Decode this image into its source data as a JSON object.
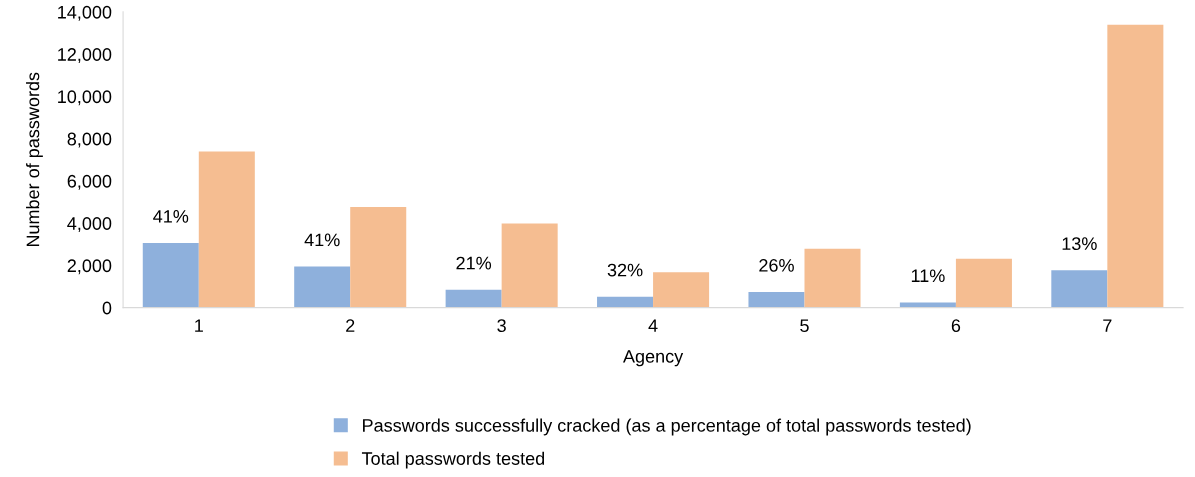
{
  "chart_data": {
    "type": "bar",
    "xlabel": "Agency",
    "ylabel": "Number of passwords",
    "categories": [
      "1",
      "2",
      "3",
      "4",
      "5",
      "6",
      "7"
    ],
    "series": [
      {
        "name": "Passwords successfully cracked (as a percentage of total passwords tested)",
        "color": "#8eb0dc",
        "values": [
          3060,
          1950,
          850,
          520,
          740,
          250,
          1770
        ]
      },
      {
        "name": "Total passwords tested",
        "color": "#f5bd91",
        "values": [
          7390,
          4770,
          3980,
          1680,
          2790,
          2310,
          13390
        ]
      }
    ],
    "ylim": [
      0,
      14000
    ],
    "yticks": [
      {
        "value": 0,
        "label": "0"
      },
      {
        "value": 2000,
        "label": "2,000"
      },
      {
        "value": 4000,
        "label": "4,000"
      },
      {
        "value": 6000,
        "label": "6,000"
      },
      {
        "value": 8000,
        "label": "8,000"
      },
      {
        "value": 10000,
        "label": "10,000"
      },
      {
        "value": 12000,
        "label": "12,000"
      },
      {
        "value": 14000,
        "label": "14,000"
      }
    ],
    "annotations": [
      {
        "text": "41%",
        "x": "1",
        "y": 3060
      },
      {
        "text": "41%",
        "x": "2",
        "y": 1950
      },
      {
        "text": "21%",
        "x": "3",
        "y": 850
      },
      {
        "text": "32%",
        "x": "4",
        "y": 520
      },
      {
        "text": "26%",
        "x": "5",
        "y": 740
      },
      {
        "text": "11%",
        "x": "6",
        "y": 250
      },
      {
        "text": "13%",
        "x": "7",
        "y": 1770
      }
    ],
    "grid": false,
    "legend": "bottom"
  }
}
